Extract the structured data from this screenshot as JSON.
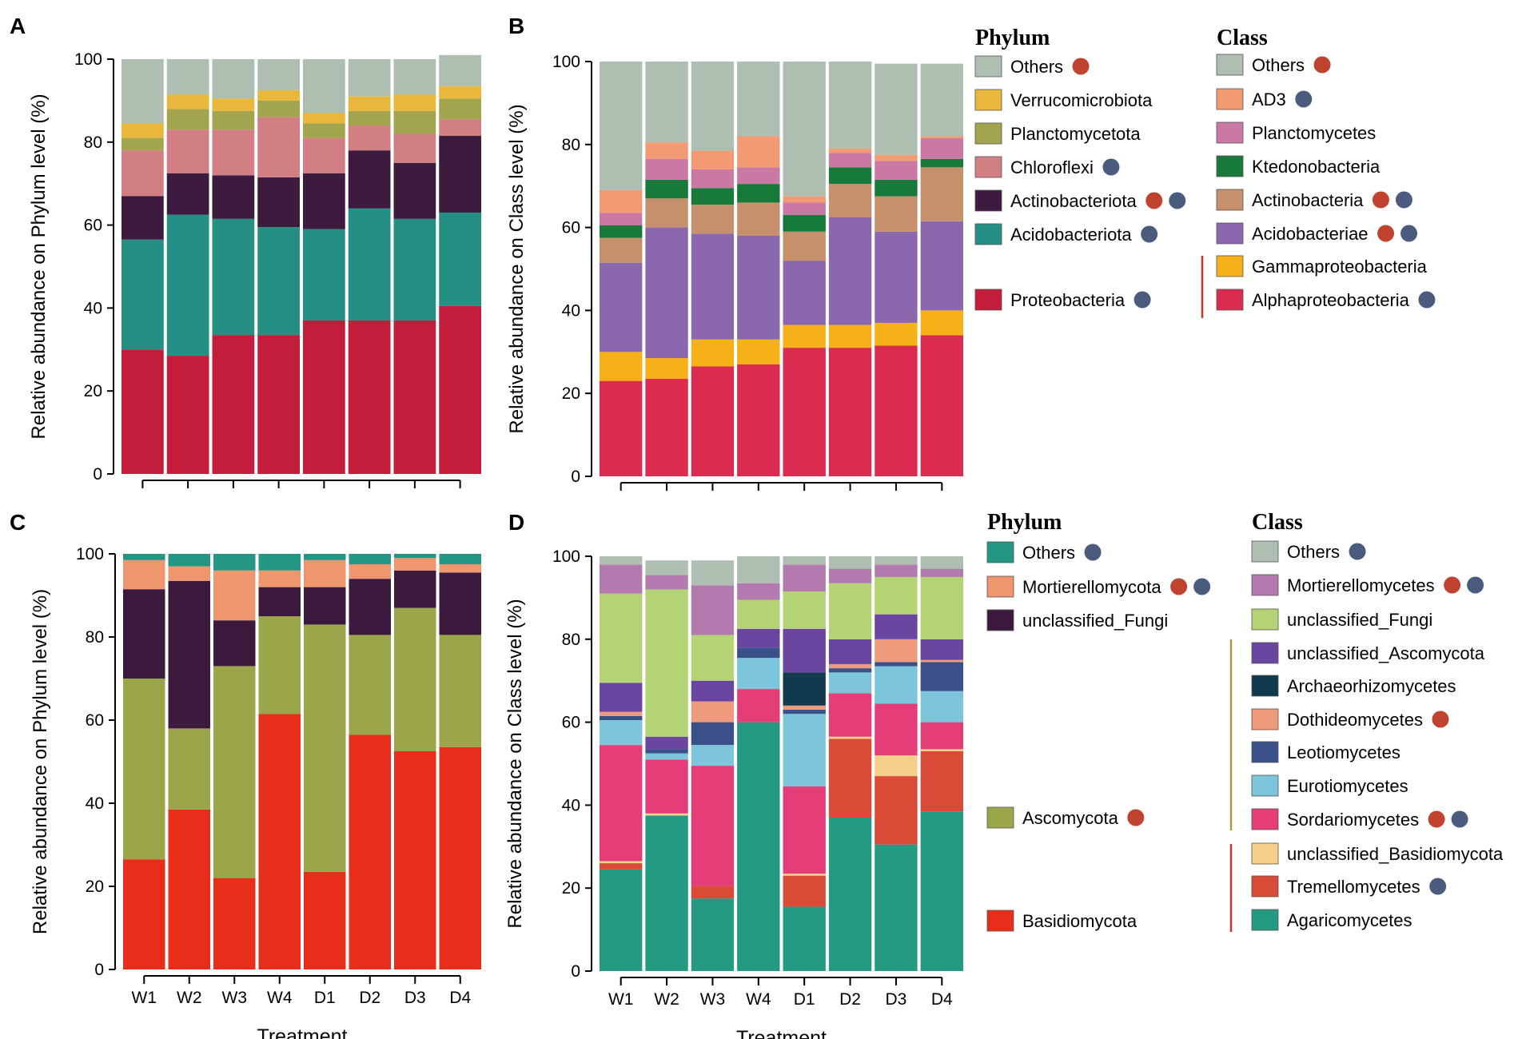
{
  "colors": {
    "others_gray": "#aebfb1",
    "verrucomicrobiota": "#e8b73b",
    "planctomycetota": "#a3a54e",
    "chloroflexi": "#d27f84",
    "actinobacteriota": "#3d1b3f",
    "acidobacteriota": "#248f82",
    "proteobacteria": "#c31d3b",
    "ad3": "#f29a73",
    "planctomycetes": "#c979a4",
    "ktedonobacteria": "#177a3b",
    "actinobacteria": "#c6906c",
    "acidobacteriae": "#8b68ad",
    "gammaproteobacteria": "#f6b119",
    "alphaproteobacteria": "#db2b4f",
    "fungi_others": "#249684",
    "mortierellomycota": "#f0966f",
    "unclassified_fungi_phylum": "#3b1a3d",
    "ascomycota": "#9ba64a",
    "basidiomycota": "#e62e1a",
    "mortierellomycetes": "#b27aae",
    "unclassified_fungi_class": "#b3d374",
    "unclassified_ascomycota": "#6a46a0",
    "archaeorhizomycetes": "#123a4e",
    "dothideomycetes": "#ee9a7c",
    "leotiomycetes": "#3a5088",
    "eurotiomycetes": "#7cc5db",
    "sordariomycetes": "#e43d78",
    "unclassified_basidiomycota": "#f4d08a",
    "tremellomycetes": "#d94b36",
    "agaricomycetes": "#249a83",
    "dot_red": "#c0432f",
    "dot_blue": "#4b5b7e",
    "bracket_red": "#c0392b",
    "bracket_olive": "#a39a4e"
  },
  "chart_data": [
    {
      "panel": "A",
      "type": "bar",
      "stacked": true,
      "title": "",
      "ylabel": "Relative abundance on Phylum level (%)",
      "xlabel": "",
      "ylim": [
        0,
        100
      ],
      "yticks": [
        "0",
        "20",
        "40",
        "60",
        "80",
        "100"
      ],
      "categories": [
        "W1",
        "W2",
        "W3",
        "W4",
        "D1",
        "D2",
        "D3",
        "D4"
      ],
      "show_category_labels": false,
      "series": [
        {
          "name": "Proteobacteria",
          "color": "proteobacteria",
          "values": [
            30,
            28.5,
            33.5,
            33.5,
            37,
            37,
            37,
            40.5
          ]
        },
        {
          "name": "Acidobacteriota",
          "color": "acidobacteriota",
          "values": [
            26.5,
            34,
            28,
            26,
            22,
            27,
            24.5,
            22.5
          ]
        },
        {
          "name": "Actinobacteriota",
          "color": "actinobacteriota",
          "values": [
            10.5,
            10,
            10.5,
            12,
            13.5,
            14,
            13.5,
            18.5
          ]
        },
        {
          "name": "Chloroflexi",
          "color": "chloroflexi",
          "values": [
            11,
            10.5,
            11,
            14.5,
            8.5,
            6,
            7,
            4
          ]
        },
        {
          "name": "Planctomycetota",
          "color": "planctomycetota",
          "values": [
            3,
            5,
            4.5,
            4,
            3.5,
            3.5,
            5.5,
            5
          ]
        },
        {
          "name": "Verrucomicrobiota",
          "color": "verrucomicrobiota",
          "values": [
            3.5,
            3.5,
            3,
            2.5,
            2.5,
            3.5,
            4,
            3
          ]
        },
        {
          "name": "Others",
          "color": "others_gray",
          "values": [
            15.5,
            8.5,
            9.5,
            7.5,
            13,
            9,
            8.5,
            7.5
          ]
        }
      ]
    },
    {
      "panel": "B",
      "type": "bar",
      "stacked": true,
      "title": "",
      "ylabel": "Relative abundance on Class level (%)",
      "xlabel": "",
      "ylim": [
        0,
        100
      ],
      "yticks": [
        "0",
        "20",
        "40",
        "60",
        "80",
        "100"
      ],
      "categories": [
        "W1",
        "W2",
        "W3",
        "W4",
        "D1",
        "D2",
        "D3",
        "D4"
      ],
      "show_category_labels": false,
      "series": [
        {
          "name": "Alphaproteobacteria",
          "color": "alphaproteobacteria",
          "values": [
            23,
            23.5,
            26.5,
            27,
            31,
            31,
            31.5,
            34
          ]
        },
        {
          "name": "Gammaproteobacteria",
          "color": "gammaproteobacteria",
          "values": [
            7,
            5,
            6.5,
            6,
            5.5,
            5.5,
            5.5,
            6
          ]
        },
        {
          "name": "Acidobacteriae",
          "color": "acidobacteriae",
          "values": [
            21.5,
            31.5,
            25.5,
            25,
            15.5,
            26,
            22,
            21.5
          ]
        },
        {
          "name": "Actinobacteria",
          "color": "actinobacteria",
          "values": [
            6,
            7,
            7,
            8,
            7,
            8,
            8.5,
            13
          ]
        },
        {
          "name": "Ktedonobacteria",
          "color": "ktedonobacteria",
          "values": [
            3,
            4.5,
            4,
            4.5,
            4,
            4,
            4,
            2
          ]
        },
        {
          "name": "Planctomycetes",
          "color": "planctomycetes",
          "values": [
            3,
            5,
            4.5,
            4,
            3,
            3.5,
            4.5,
            5
          ]
        },
        {
          "name": "AD3",
          "color": "ad3",
          "values": [
            5.5,
            4,
            4.5,
            7.5,
            1.5,
            1,
            1.5,
            0.5
          ]
        },
        {
          "name": "Others",
          "color": "others_gray",
          "values": [
            31,
            19.5,
            21.5,
            18,
            32.5,
            21,
            22,
            17.5
          ]
        }
      ]
    },
    {
      "panel": "C",
      "type": "bar",
      "stacked": true,
      "title": "",
      "ylabel": "Relative abundance on Phylum level (%)",
      "xlabel": "Treatment",
      "ylim": [
        0,
        100
      ],
      "yticks": [
        "0",
        "20",
        "40",
        "60",
        "80",
        "100"
      ],
      "categories": [
        "W1",
        "W2",
        "W3",
        "W4",
        "D1",
        "D2",
        "D3",
        "D4"
      ],
      "show_category_labels": true,
      "series": [
        {
          "name": "Basidiomycota",
          "color": "basidiomycota",
          "values": [
            26.5,
            38.5,
            22,
            61.5,
            23.5,
            56.5,
            52.5,
            53.5
          ]
        },
        {
          "name": "Ascomycota",
          "color": "ascomycota",
          "values": [
            43.5,
            19.5,
            51,
            23.5,
            59.5,
            24,
            34.5,
            27
          ]
        },
        {
          "name": "unclassified_Fungi",
          "color": "unclassified_fungi_phylum",
          "values": [
            21.5,
            35.5,
            11,
            7,
            9,
            13.5,
            9,
            15
          ]
        },
        {
          "name": "Mortierellomycota",
          "color": "mortierellomycota",
          "values": [
            7,
            3.5,
            12,
            4,
            6.5,
            3.5,
            3,
            2
          ]
        },
        {
          "name": "Others",
          "color": "fungi_others",
          "values": [
            1.5,
            3,
            4,
            4,
            1.5,
            2.5,
            1,
            2.5
          ]
        }
      ]
    },
    {
      "panel": "D",
      "type": "bar",
      "stacked": true,
      "title": "",
      "ylabel": "Relative abundance on Class level (%)",
      "xlabel": "Treatment",
      "ylim": [
        0,
        100
      ],
      "yticks": [
        "0",
        "20",
        "40",
        "60",
        "80",
        "100"
      ],
      "categories": [
        "W1",
        "W2",
        "W3",
        "W4",
        "D1",
        "D2",
        "D3",
        "D4"
      ],
      "show_category_labels": true,
      "series": [
        {
          "name": "Agaricomycetes",
          "color": "agaricomycetes",
          "values": [
            24.5,
            37.5,
            17.5,
            60,
            15.5,
            37,
            30.5,
            38.5
          ]
        },
        {
          "name": "Tremellomycetes",
          "color": "tremellomycetes",
          "values": [
            1.5,
            0,
            3,
            0,
            7.5,
            19,
            16.5,
            14.5
          ]
        },
        {
          "name": "unclassified_Basidiomycota",
          "color": "unclassified_basidiomycota",
          "values": [
            0.5,
            0.5,
            0,
            0,
            0.5,
            0.5,
            5,
            0.5
          ]
        },
        {
          "name": "Sordariomycetes",
          "color": "sordariomycetes",
          "values": [
            28,
            13,
            29,
            8,
            21,
            10.5,
            12.5,
            6.5
          ]
        },
        {
          "name": "Eurotiomycetes",
          "color": "eurotiomycetes",
          "values": [
            6,
            1.5,
            5,
            7.5,
            17.5,
            5,
            9,
            7.5
          ]
        },
        {
          "name": "Leotiomycetes",
          "color": "leotiomycetes",
          "values": [
            1,
            1,
            5.5,
            2.5,
            1,
            1,
            1,
            7
          ]
        },
        {
          "name": "Dothideomycetes",
          "color": "dothideomycetes",
          "values": [
            1,
            0,
            5,
            0,
            1,
            1,
            5.5,
            0.5
          ]
        },
        {
          "name": "Archaeorhizomycetes",
          "color": "archaeorhizomycetes",
          "values": [
            0,
            0,
            0,
            0,
            8,
            0,
            0,
            0
          ]
        },
        {
          "name": "unclassified_Ascomycota",
          "color": "unclassified_ascomycota",
          "values": [
            7,
            3,
            5,
            4.5,
            10.5,
            6,
            6,
            5
          ]
        },
        {
          "name": "unclassified_Fungi",
          "color": "unclassified_fungi_class",
          "values": [
            21.5,
            35.5,
            11,
            7,
            9,
            13.5,
            9,
            15
          ]
        },
        {
          "name": "Mortierellomycetes",
          "color": "mortierellomycetes",
          "values": [
            7,
            3.5,
            12,
            4,
            6.5,
            3.5,
            3,
            2
          ]
        },
        {
          "name": "Others",
          "color": "others_gray",
          "values": [
            2,
            3.5,
            6,
            6.5,
            2,
            3,
            2,
            3
          ]
        }
      ]
    }
  ],
  "panel_labels": [
    "A",
    "B",
    "C",
    "D"
  ],
  "legends": {
    "top_phylum": {
      "title": "Phylum",
      "items": [
        {
          "label": "Others",
          "color": "others_gray",
          "dots": [
            "red"
          ]
        },
        {
          "label": "Verrucomicrobiota",
          "color": "verrucomicrobiota",
          "dots": []
        },
        {
          "label": "Planctomycetota",
          "color": "planctomycetota",
          "dots": []
        },
        {
          "label": "Chloroflexi",
          "color": "chloroflexi",
          "dots": [
            "blue"
          ]
        },
        {
          "label": "Actinobacteriota",
          "color": "actinobacteriota",
          "dots": [
            "red",
            "blue"
          ]
        },
        {
          "label": "Acidobacteriota",
          "color": "acidobacteriota",
          "dots": [
            "blue"
          ]
        },
        {
          "label": "Proteobacteria",
          "color": "proteobacteria",
          "dots": [
            "blue"
          ]
        }
      ]
    },
    "top_class": {
      "title": "Class",
      "items": [
        {
          "label": "Others",
          "color": "others_gray",
          "dots": [
            "red"
          ]
        },
        {
          "label": "AD3",
          "color": "ad3",
          "dots": [
            "blue"
          ]
        },
        {
          "label": "Planctomycetes",
          "color": "planctomycetes",
          "dots": []
        },
        {
          "label": "Ktedonobacteria",
          "color": "ktedonobacteria",
          "dots": []
        },
        {
          "label": "Actinobacteria",
          "color": "actinobacteria",
          "dots": [
            "red",
            "blue"
          ]
        },
        {
          "label": "Acidobacteriae",
          "color": "acidobacteriae",
          "dots": [
            "red",
            "blue"
          ]
        },
        {
          "label": "Gammaproteobacteria",
          "color": "gammaproteobacteria",
          "dots": []
        },
        {
          "label": "Alphaproteobacteria",
          "color": "alphaproteobacteria",
          "dots": [
            "blue"
          ]
        }
      ]
    },
    "bottom_phylum": {
      "title": "Phylum",
      "items": [
        {
          "label": "Others",
          "color": "fungi_others",
          "dots": [
            "blue"
          ]
        },
        {
          "label": "Mortierellomycota",
          "color": "mortierellomycota",
          "dots": [
            "red",
            "blue"
          ]
        },
        {
          "label": "unclassified_Fungi",
          "color": "unclassified_fungi_phylum",
          "dots": []
        },
        {
          "label": "Ascomycota",
          "color": "ascomycota",
          "dots": [
            "red"
          ]
        },
        {
          "label": "Basidiomycota",
          "color": "basidiomycota",
          "dots": []
        }
      ]
    },
    "bottom_class": {
      "title": "Class",
      "items": [
        {
          "label": "Others",
          "color": "others_gray",
          "dots": [
            "blue"
          ]
        },
        {
          "label": "Mortierellomycetes",
          "color": "mortierellomycetes",
          "dots": [
            "red",
            "blue"
          ]
        },
        {
          "label": "unclassified_Fungi",
          "color": "unclassified_fungi_class",
          "dots": []
        },
        {
          "label": "unclassified_Ascomycota",
          "color": "unclassified_ascomycota",
          "dots": []
        },
        {
          "label": "Archaeorhizomycetes",
          "color": "archaeorhizomycetes",
          "dots": []
        },
        {
          "label": "Dothideomycetes",
          "color": "dothideomycetes",
          "dots": [
            "red"
          ]
        },
        {
          "label": "Leotiomycetes",
          "color": "leotiomycetes",
          "dots": []
        },
        {
          "label": "Eurotiomycetes",
          "color": "eurotiomycetes",
          "dots": []
        },
        {
          "label": "Sordariomycetes",
          "color": "sordariomycetes",
          "dots": [
            "red",
            "blue"
          ]
        },
        {
          "label": "unclassified_Basidiomycota",
          "color": "unclassified_basidiomycota",
          "dots": []
        },
        {
          "label": "Tremellomycetes",
          "color": "tremellomycetes",
          "dots": [
            "blue"
          ]
        },
        {
          "label": "Agaricomycetes",
          "color": "agaricomycetes",
          "dots": []
        }
      ]
    }
  }
}
